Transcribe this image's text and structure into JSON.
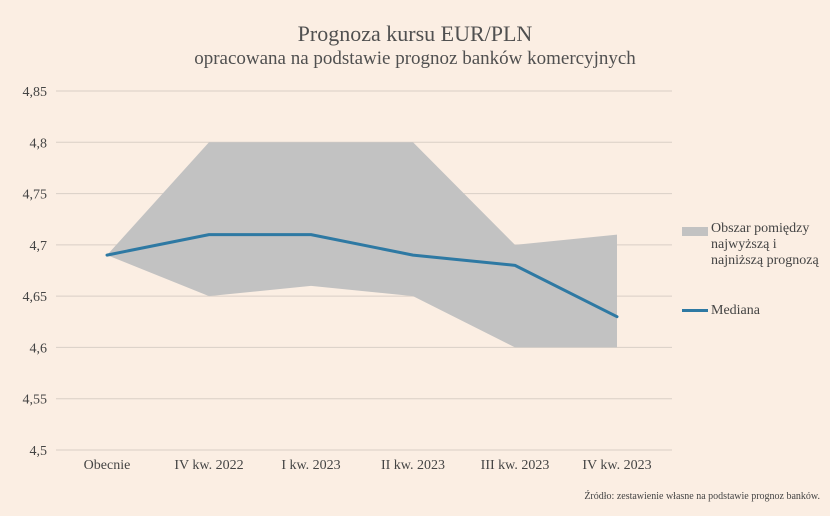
{
  "chart_data": {
    "type": "area",
    "title": "Prognoza kursu EUR/PLN",
    "subtitle": "opracowana na podstawie prognoz banków komercyjnych",
    "xlabel": "",
    "ylabel": "",
    "categories": [
      "Obecnie",
      "IV kw. 2022",
      "I kw. 2023",
      "II kw. 2023",
      "III kw. 2023",
      "IV kw. 2023"
    ],
    "ylim": [
      4.5,
      4.85
    ],
    "yticks": [
      4.5,
      4.55,
      4.6,
      4.65,
      4.7,
      4.75,
      4.8,
      4.85
    ],
    "ytick_labels": [
      "4,5",
      "4,55",
      "4,6",
      "4,65",
      "4,7",
      "4,75",
      "4,8",
      "4,85"
    ],
    "grid": "horizontal",
    "legend_position": "right",
    "series": [
      {
        "name": "Obszar pomiędzy najwyższą i najniższą prognozą",
        "kind": "band",
        "upper": [
          4.69,
          4.8,
          4.8,
          4.8,
          4.7,
          4.71
        ],
        "lower": [
          4.69,
          4.65,
          4.66,
          4.65,
          4.6,
          4.6
        ],
        "color": "#c2c2c2"
      },
      {
        "name": "Mediana",
        "kind": "line",
        "values": [
          4.69,
          4.71,
          4.71,
          4.69,
          4.68,
          4.63
        ],
        "color": "#2e79a3"
      }
    ]
  },
  "source": "Źródło: zestawienie własne na podstawie prognoz banków.",
  "colors": {
    "background": "#fbeee3",
    "grid": "#d9cfc6",
    "band": "#c2c2c2",
    "median": "#2e79a3"
  }
}
